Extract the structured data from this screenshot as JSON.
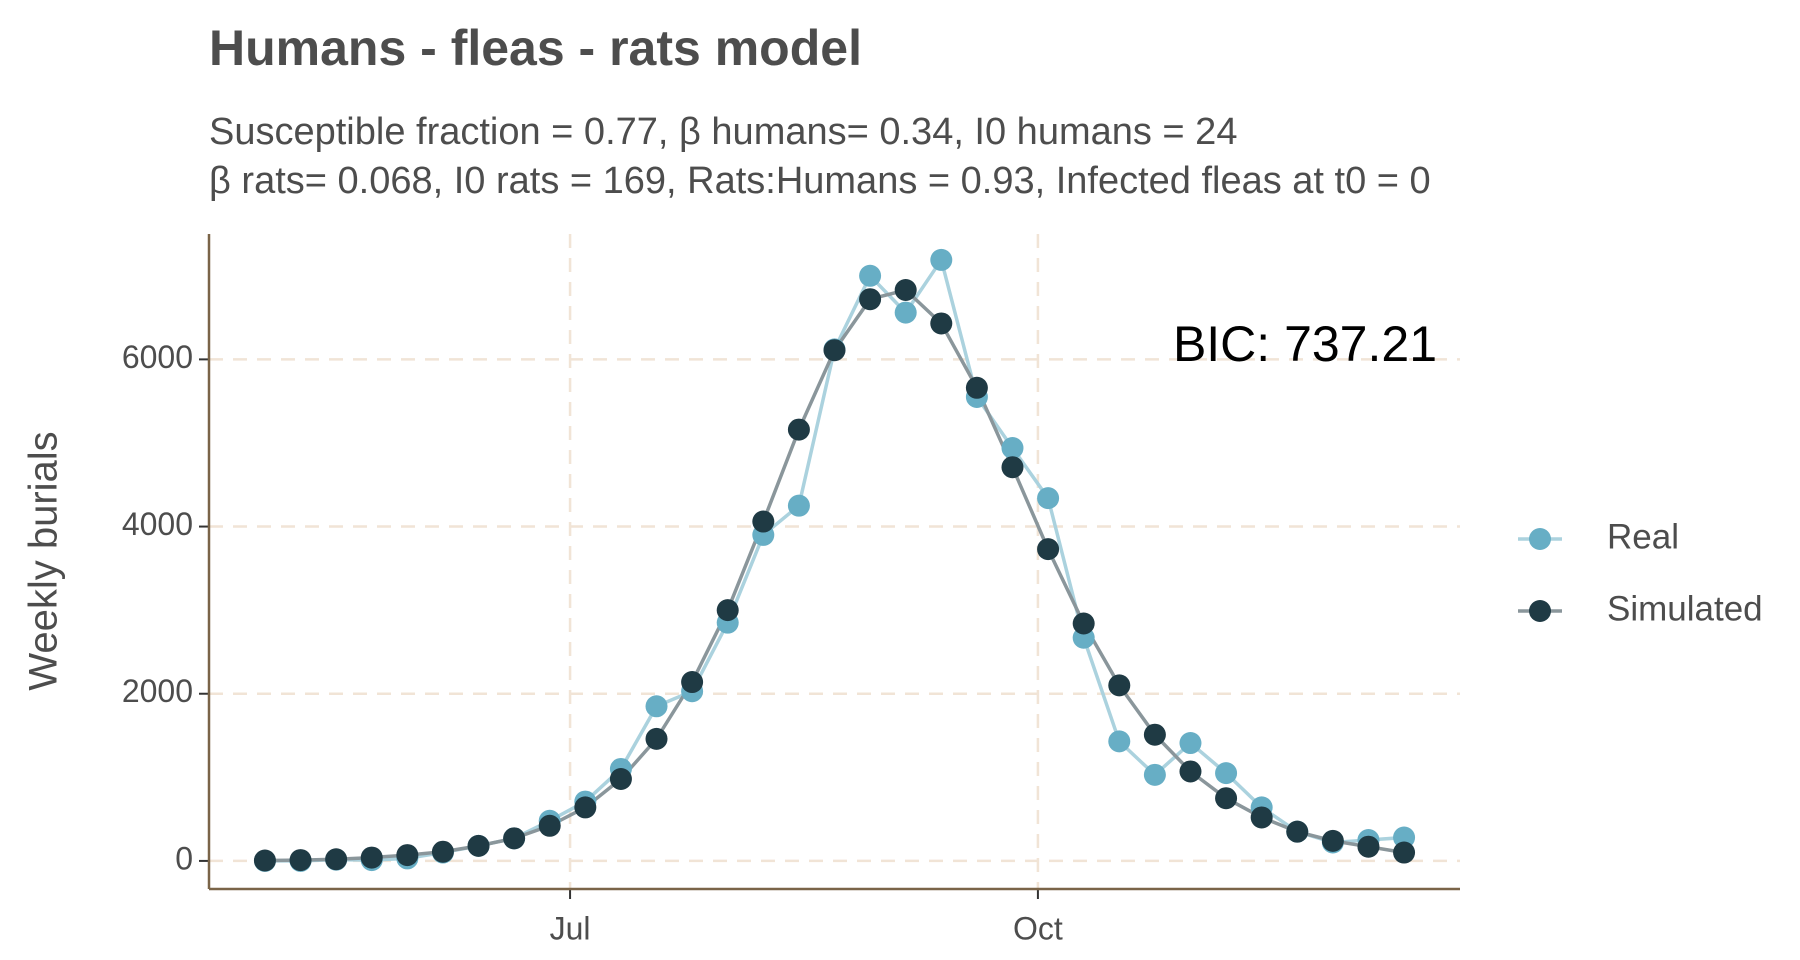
{
  "chart_data": {
    "type": "line",
    "title": "Humans - fleas - rats model",
    "subtitle": [
      "Susceptible fraction = 0.77, β humans= 0.34, I0 humans = 24",
      "β rats= 0.068, I0 rats = 169, Rats:Humans = 0.93, Infected fleas at t0 = 0"
    ],
    "y_label": "Weekly burials",
    "annotation": "BIC: 737.21",
    "x": [
      -60,
      -53,
      -46,
      -39,
      -32,
      -25,
      -18,
      -11,
      -4,
      3,
      10,
      17,
      24,
      31,
      38,
      45,
      52,
      59,
      66,
      73,
      80,
      87,
      94,
      101,
      108,
      115,
      122,
      129,
      136,
      143,
      150,
      157,
      164
    ],
    "series": [
      {
        "name": "Real",
        "color": "#67aec5",
        "line_color": "#abd2de",
        "values": [
          0,
          0,
          15,
          10,
          30,
          100,
          180,
          270,
          480,
          710,
          1100,
          1850,
          2030,
          2850,
          3900,
          4250,
          6120,
          7000,
          6560,
          7190,
          5550,
          4940,
          4340,
          2670,
          1430,
          1030,
          1410,
          1050,
          640,
          350,
          220,
          250,
          280
        ]
      },
      {
        "name": "Simulated",
        "color": "#1f3a44",
        "line_color": "#8a969b",
        "values": [
          5,
          10,
          20,
          40,
          70,
          110,
          180,
          270,
          420,
          640,
          980,
          1460,
          2140,
          3000,
          4060,
          5160,
          6110,
          6720,
          6830,
          6430,
          5660,
          4710,
          3730,
          2840,
          2100,
          1510,
          1070,
          750,
          520,
          350,
          240,
          170,
          100
        ]
      }
    ],
    "xlim": [
      -71,
      175
    ],
    "xticks": [
      {
        "value": 0,
        "label": "Jul"
      },
      {
        "value": 92,
        "label": "Oct"
      }
    ],
    "ylim": [
      -336,
      7500
    ],
    "yticks": [
      0,
      2000,
      4000,
      6000
    ],
    "grid": true,
    "legend": "right"
  }
}
